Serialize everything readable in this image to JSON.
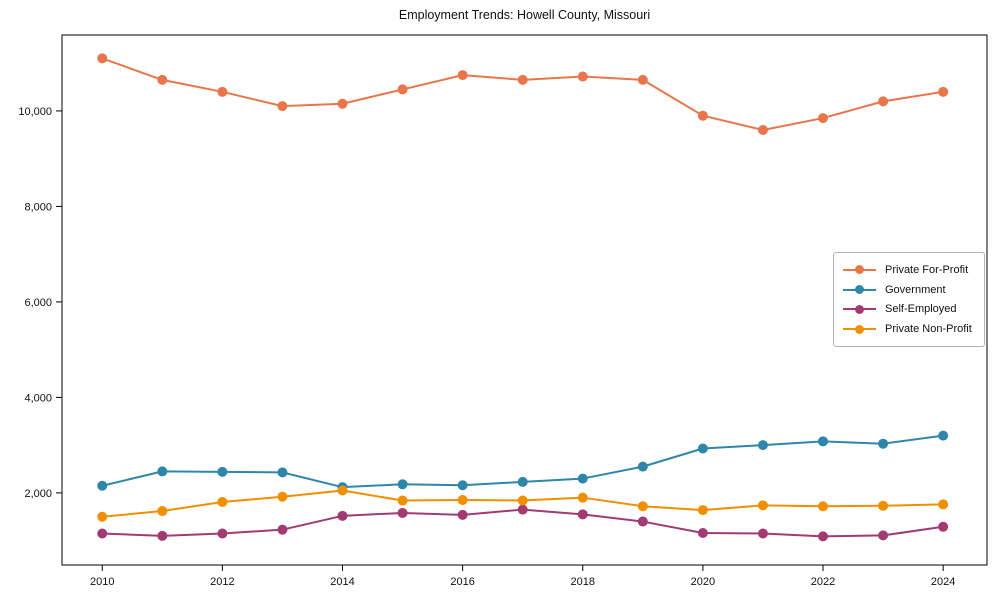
{
  "figure": {
    "title": "Employment Trends: Howell County, Missouri"
  },
  "chart_data": {
    "type": "line",
    "title": "Employment Trends: Howell County, Missouri",
    "xlabel": "",
    "ylabel": "",
    "x": [
      2010,
      2011,
      2012,
      2013,
      2014,
      2015,
      2016,
      2017,
      2018,
      2019,
      2020,
      2021,
      2022,
      2023,
      2024
    ],
    "series": [
      {
        "name": "Private For-Profit",
        "color": "#E8764A",
        "values": [
          11100,
          10650,
          10400,
          10100,
          10150,
          10450,
          10750,
          10650,
          10720,
          10650,
          9900,
          9600,
          9850,
          10200,
          10400
        ]
      },
      {
        "name": "Government",
        "color": "#2E86AB",
        "values": [
          2150,
          2450,
          2440,
          2430,
          2120,
          2180,
          2160,
          2230,
          2300,
          2550,
          2930,
          3000,
          3080,
          3030,
          3200
        ]
      },
      {
        "name": "Self-Employed",
        "color": "#A23B72",
        "values": [
          1150,
          1100,
          1150,
          1230,
          1520,
          1580,
          1540,
          1650,
          1550,
          1400,
          1160,
          1150,
          1090,
          1110,
          1290
        ]
      },
      {
        "name": "Private Non-Profit",
        "color": "#F18F01",
        "values": [
          1500,
          1620,
          1810,
          1920,
          2050,
          1840,
          1850,
          1840,
          1900,
          1720,
          1640,
          1740,
          1720,
          1730,
          1760
        ]
      }
    ],
    "xlim": [
      2009.33,
      2024.73
    ],
    "ylim": [
      490,
      11590
    ],
    "xticks": [
      2010,
      2012,
      2014,
      2016,
      2018,
      2020,
      2022,
      2024
    ],
    "yticks": [
      2000,
      4000,
      6000,
      8000,
      10000
    ],
    "ytick_labels": [
      "2,000",
      "4,000",
      "6,000",
      "8,000",
      "10,000"
    ],
    "grid": false,
    "legend_position": "center right",
    "axis_color": "#000000",
    "tick_label_color": "#111111",
    "background_color": "#ffffff"
  }
}
